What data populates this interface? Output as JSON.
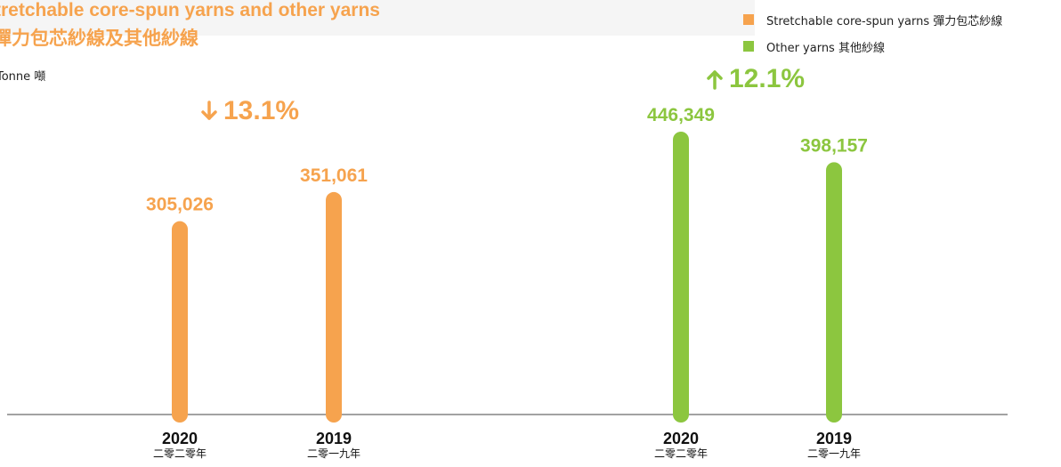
{
  "header": {
    "title_en": "Stretchable core-spun yarns and other yarns",
    "title_zh": "彈力包芯紗線及其他紗線",
    "unit": "Tonne 噸"
  },
  "legend": [
    {
      "label": "Stretchable core-spun yarns 彈力包芯紗線",
      "color": "#f6a34e"
    },
    {
      "label": "Other yarns 其他紗線",
      "color": "#8cc63f"
    }
  ],
  "changes": [
    {
      "text": "13.1%",
      "direction": "down",
      "color": "#f6a34e"
    },
    {
      "text": "12.1%",
      "direction": "up",
      "color": "#8cc63f"
    }
  ],
  "chart_data": {
    "type": "bar",
    "categories": [
      {
        "year": "2020",
        "year_zh": "二零二零年"
      },
      {
        "year": "2019",
        "year_zh": "二零一九年"
      }
    ],
    "series": [
      {
        "name": "Stretchable core-spun yarns 彈力包芯紗線",
        "color": "#f6a34e",
        "values": [
          305026,
          351061
        ],
        "labels": [
          "305,026",
          "351,061"
        ]
      },
      {
        "name": "Other yarns 其他紗線",
        "color": "#8cc63f",
        "values": [
          446349,
          398157
        ],
        "labels": [
          "446,349",
          "398,157"
        ]
      }
    ],
    "xlabel": "",
    "ylabel": "Tonne 噸",
    "ylim": [
      0,
      446349
    ],
    "grid": false,
    "legend_position": "top-right"
  }
}
